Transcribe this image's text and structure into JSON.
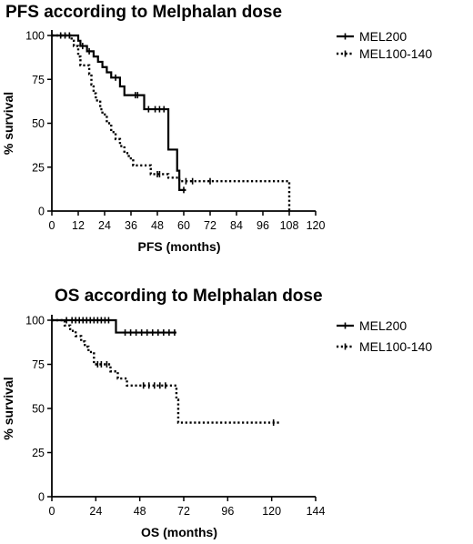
{
  "chart_data": [
    {
      "type": "line",
      "subtype": "kaplan-meier",
      "title": "PFS according to Melphalan dose",
      "xlabel": "PFS (months)",
      "ylabel": "% survival",
      "xlim": [
        0,
        120
      ],
      "ylim": [
        0,
        100
      ],
      "xticks": [
        0,
        12,
        24,
        36,
        48,
        60,
        72,
        84,
        96,
        108,
        120
      ],
      "yticks": [
        0,
        25,
        50,
        75,
        100
      ],
      "grid": false,
      "legend_position": "right",
      "series": [
        {
          "name": "MEL200",
          "style": "solid",
          "color": "#000000",
          "steps": [
            [
              0,
              100
            ],
            [
              10,
              100
            ],
            [
              12,
              97
            ],
            [
              13,
              94
            ],
            [
              16,
              91
            ],
            [
              19,
              88
            ],
            [
              21,
              85
            ],
            [
              23,
              82
            ],
            [
              25,
              79
            ],
            [
              27,
              76
            ],
            [
              31,
              71
            ],
            [
              33,
              66
            ],
            [
              42,
              58
            ],
            [
              53,
              35
            ],
            [
              57,
              23
            ],
            [
              58,
              12
            ],
            [
              61,
              12
            ]
          ],
          "censored": [
            [
              4,
              100
            ],
            [
              6,
              100
            ],
            [
              8,
              100
            ],
            [
              14,
              94
            ],
            [
              17,
              91
            ],
            [
              29,
              76
            ],
            [
              38,
              66
            ],
            [
              39,
              66
            ],
            [
              44,
              58
            ],
            [
              47,
              58
            ],
            [
              49,
              58
            ],
            [
              51,
              58
            ],
            [
              60,
              12
            ]
          ]
        },
        {
          "name": "MEL100-140",
          "style": "dotted",
          "color": "#000000",
          "steps": [
            [
              0,
              100
            ],
            [
              7,
              100
            ],
            [
              9,
              97
            ],
            [
              10,
              94
            ],
            [
              12,
              88
            ],
            [
              13,
              83
            ],
            [
              17,
              78
            ],
            [
              18,
              72
            ],
            [
              19,
              67
            ],
            [
              20,
              63
            ],
            [
              22,
              58
            ],
            [
              23,
              55
            ],
            [
              25,
              50
            ],
            [
              27,
              45
            ],
            [
              29,
              41
            ],
            [
              31,
              37
            ],
            [
              33,
              33
            ],
            [
              35,
              30
            ],
            [
              37,
              26
            ],
            [
              45,
              21
            ],
            [
              53,
              19
            ],
            [
              58,
              17
            ],
            [
              107,
              17
            ],
            [
              108,
              0
            ]
          ],
          "censored": [
            [
              48,
              21
            ],
            [
              49,
              21
            ],
            [
              61,
              17
            ],
            [
              64,
              17
            ],
            [
              72,
              17
            ]
          ]
        }
      ]
    },
    {
      "type": "line",
      "subtype": "kaplan-meier",
      "title": "OS according to Melphalan dose",
      "xlabel": "OS (months)",
      "ylabel": "% survival",
      "xlim": [
        0,
        144
      ],
      "ylim": [
        0,
        100
      ],
      "xticks": [
        0,
        24,
        48,
        72,
        96,
        120,
        144
      ],
      "yticks": [
        0,
        25,
        50,
        75,
        100
      ],
      "grid": false,
      "legend_position": "right",
      "series": [
        {
          "name": "MEL200",
          "style": "solid",
          "color": "#000000",
          "steps": [
            [
              0,
              100
            ],
            [
              35,
              100
            ],
            [
              35,
              93
            ],
            [
              68,
              93
            ]
          ],
          "censored": [
            [
              8,
              100
            ],
            [
              11,
              100
            ],
            [
              13,
              100
            ],
            [
              15,
              100
            ],
            [
              17,
              100
            ],
            [
              19,
              100
            ],
            [
              21,
              100
            ],
            [
              23,
              100
            ],
            [
              25,
              100
            ],
            [
              27,
              100
            ],
            [
              29,
              100
            ],
            [
              31,
              100
            ],
            [
              40,
              93
            ],
            [
              43,
              93
            ],
            [
              46,
              93
            ],
            [
              49,
              93
            ],
            [
              52,
              93
            ],
            [
              55,
              93
            ],
            [
              58,
              93
            ],
            [
              61,
              93
            ],
            [
              64,
              93
            ],
            [
              67,
              93
            ]
          ]
        },
        {
          "name": "MEL100-140",
          "style": "dotted",
          "color": "#000000",
          "steps": [
            [
              0,
              100
            ],
            [
              5,
              100
            ],
            [
              7,
              97
            ],
            [
              10,
              94
            ],
            [
              13,
              91
            ],
            [
              16,
              88
            ],
            [
              18,
              85
            ],
            [
              20,
              82
            ],
            [
              23,
              75
            ],
            [
              32,
              71
            ],
            [
              36,
              67
            ],
            [
              41,
              63
            ],
            [
              66,
              63
            ],
            [
              68,
              55
            ],
            [
              69,
              42
            ],
            [
              124,
              42
            ]
          ],
          "censored": [
            [
              25,
              75
            ],
            [
              27,
              75
            ],
            [
              30,
              75
            ],
            [
              50,
              63
            ],
            [
              53,
              63
            ],
            [
              56,
              63
            ],
            [
              59,
              63
            ],
            [
              62,
              63
            ],
            [
              121,
              42
            ]
          ]
        }
      ]
    }
  ]
}
